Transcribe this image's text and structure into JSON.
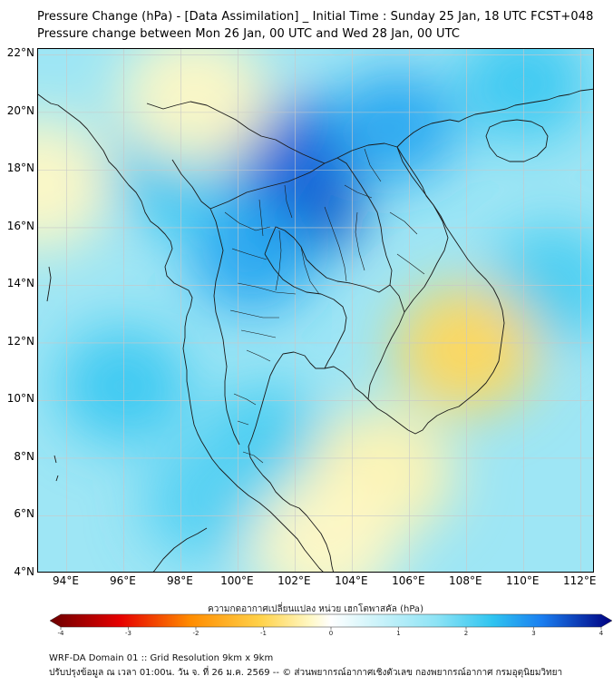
{
  "header": {
    "title_line1": "Pressure Change (hPa) - [Data Assimilation] _ Initial Time : Sunday 25 Jan, 18 UTC FCST+048",
    "title_line2": "Pressure change between Mon 26 Jan, 00 UTC and Wed 28 Jan, 00 UTC"
  },
  "map": {
    "lon_range": [
      93,
      112.5
    ],
    "lat_range": [
      4,
      22.2
    ],
    "lat_ticks": [
      {
        "value": 22,
        "label": "22°N"
      },
      {
        "value": 20,
        "label": "20°N"
      },
      {
        "value": 18,
        "label": "18°N"
      },
      {
        "value": 16,
        "label": "16°N"
      },
      {
        "value": 14,
        "label": "14°N"
      },
      {
        "value": 12,
        "label": "12°N"
      },
      {
        "value": 10,
        "label": "10°N"
      },
      {
        "value": 8,
        "label": "8°N"
      },
      {
        "value": 6,
        "label": "6°N"
      },
      {
        "value": 4,
        "label": "4°N"
      }
    ],
    "lon_ticks": [
      {
        "value": 94,
        "label": "94°E"
      },
      {
        "value": 96,
        "label": "96°E"
      },
      {
        "value": 98,
        "label": "98°E"
      },
      {
        "value": 100,
        "label": "100°E"
      },
      {
        "value": 102,
        "label": "102°E"
      },
      {
        "value": 104,
        "label": "104°E"
      },
      {
        "value": 106,
        "label": "106°E"
      },
      {
        "value": 108,
        "label": "108°E"
      },
      {
        "value": 110,
        "label": "110°E"
      },
      {
        "value": 112,
        "label": "112°E"
      }
    ],
    "colors": {
      "background": "#9ee6f5",
      "coast_line": "#1a1a1a",
      "grid_line": "#c8c8c8"
    },
    "field_blobs": [
      {
        "name": "strong-fall-northeast-thailand",
        "lon": 102.3,
        "lat": 16.8,
        "value": 3.4
      },
      {
        "name": "fall-laos-north",
        "lon": 101.8,
        "lat": 18.6,
        "value": 3.2
      },
      {
        "name": "fall-vietnam-north",
        "lon": 105.5,
        "lat": 19.5,
        "value": 2.6
      },
      {
        "name": "fall-myanmar-central",
        "lon": 97.5,
        "lat": 18.0,
        "value": 2.3
      },
      {
        "name": "fall-central-thailand",
        "lon": 100.5,
        "lat": 15.0,
        "value": 2.6
      },
      {
        "name": "fall-andaman-sea",
        "lon": 96.0,
        "lat": 10.5,
        "value": 2.2
      },
      {
        "name": "fall-gulf-of-thailand",
        "lon": 101.0,
        "lat": 8.5,
        "value": 2.1
      },
      {
        "name": "fall-malay-north",
        "lon": 99.0,
        "lat": 6.5,
        "value": 2.0
      },
      {
        "name": "fall-south-china-sea",
        "lon": 111.0,
        "lat": 14.0,
        "value": 2.1
      },
      {
        "name": "fall-northeast-corner",
        "lon": 110.0,
        "lat": 21.0,
        "value": 2.2
      },
      {
        "name": "rise-south-vietnam",
        "lon": 108.0,
        "lat": 11.8,
        "value": -0.9
      },
      {
        "name": "rise-gulf-south",
        "lon": 105.0,
        "lat": 7.5,
        "value": -0.4
      },
      {
        "name": "rise-malay-coast",
        "lon": 103.0,
        "lat": 5.0,
        "value": -0.3
      },
      {
        "name": "rise-west-edge",
        "lon": 93.0,
        "lat": 17.5,
        "value": -0.3
      },
      {
        "name": "rise-myanmar-north",
        "lon": 98.5,
        "lat": 20.5,
        "value": -0.3
      }
    ]
  },
  "colorbar": {
    "title": "ความกดอากาศเปลี่ยนแปลง หน่วย เฮกโตพาสคัล (hPa)",
    "range": [
      -4,
      4
    ],
    "ticks": [
      {
        "value": -4,
        "label": "-4"
      },
      {
        "value": -3,
        "label": "-3"
      },
      {
        "value": -2,
        "label": "-2"
      },
      {
        "value": -1,
        "label": "-1"
      },
      {
        "value": 0,
        "label": "0"
      },
      {
        "value": 1,
        "label": "1"
      },
      {
        "value": 2,
        "label": "2"
      },
      {
        "value": 3,
        "label": "3"
      },
      {
        "value": 4,
        "label": "4"
      }
    ],
    "stops": [
      {
        "value": -4,
        "color": "#6b0000"
      },
      {
        "value": -3,
        "color": "#e60000"
      },
      {
        "value": -2,
        "color": "#ff8c00"
      },
      {
        "value": -1,
        "color": "#ffd24a"
      },
      {
        "value": -0.3,
        "color": "#fff8c4"
      },
      {
        "value": 0,
        "color": "#ffffff"
      },
      {
        "value": 0.5,
        "color": "#d8f6fb"
      },
      {
        "value": 1.5,
        "color": "#8de3f5"
      },
      {
        "value": 2.3,
        "color": "#2fc4f0"
      },
      {
        "value": 3,
        "color": "#1a7ef0"
      },
      {
        "value": 4,
        "color": "#000080"
      }
    ]
  },
  "footer": {
    "line1": "WRF-DA Domain 01 :: Grid Resolution 9km x 9km",
    "line2": "ปรับปรุงข้อมูล ณ เวลา 01:00น. วัน จ. ที่ 26 ม.ค. 2569 -- © ส่วนพยากรณ์อากาศเชิงตัวเลข กองพยากรณ์อากาศ กรมอุตุนิยมวิทยา"
  }
}
